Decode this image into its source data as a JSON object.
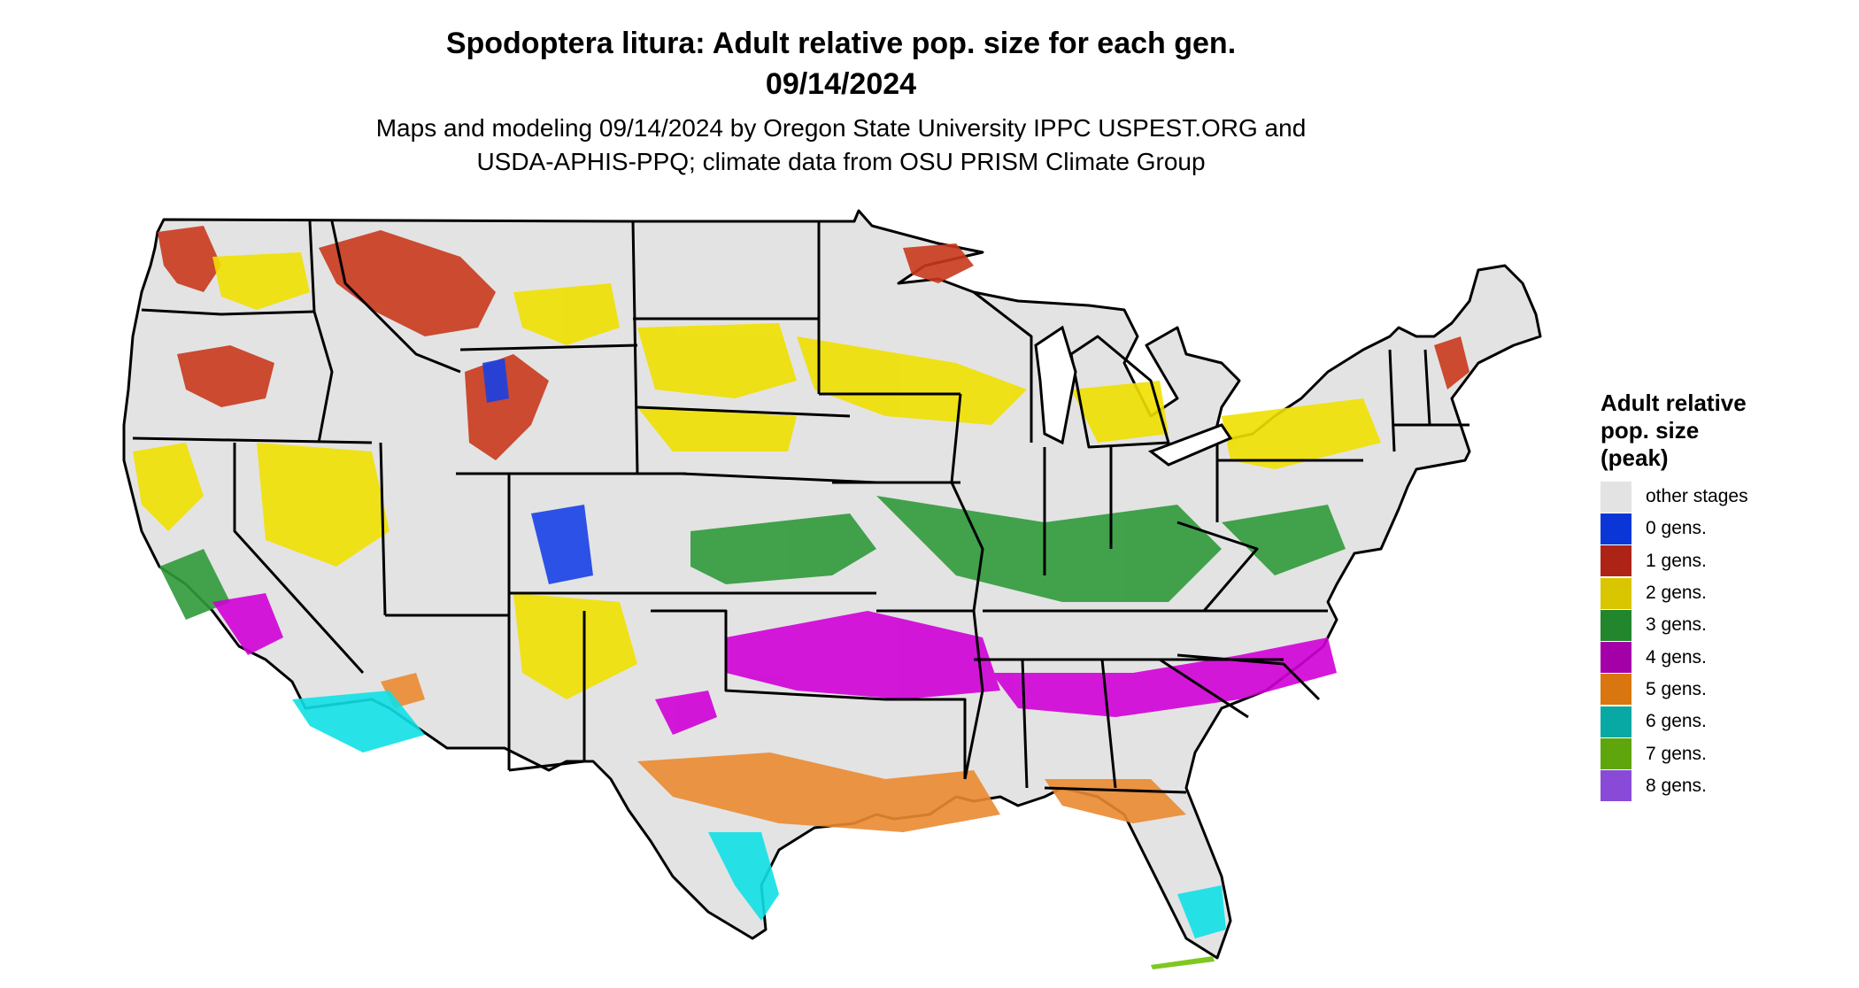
{
  "header": {
    "title_line1": "Spodoptera litura: Adult relative pop. size for each gen.",
    "title_line2": "09/14/2024",
    "subtitle_line1": "Maps and modeling 09/14/2024 by Oregon State University IPPC USPEST.ORG and",
    "subtitle_line2": "USDA-APHIS-PPQ; climate data from OSU PRISM Climate Group"
  },
  "legend": {
    "title_line1": "Adult relative",
    "title_line2": "pop. size",
    "title_line3": "(peak)",
    "items": [
      {
        "label": "other stages",
        "color": "#e3e3e3"
      },
      {
        "label": "0 gens.",
        "color": "#0a36d8"
      },
      {
        "label": "1 gens.",
        "color": "#ad2417"
      },
      {
        "label": "2 gens.",
        "color": "#d9c500"
      },
      {
        "label": "3 gens.",
        "color": "#21862c"
      },
      {
        "label": "4 gens.",
        "color": "#a300a8"
      },
      {
        "label": "5 gens.",
        "color": "#d9760f"
      },
      {
        "label": "6 gens.",
        "color": "#08a8a5"
      },
      {
        "label": "7 gens.",
        "color": "#5ea60c"
      },
      {
        "label": "8 gens.",
        "color": "#8a4ad8"
      }
    ]
  },
  "map": {
    "base_color": "#e3e3e3",
    "border_color": "#000000",
    "highlight_colors": {
      "gen0": "#1740e6",
      "gen1": "#c8381c",
      "gen2": "#f0e000",
      "gen3": "#2f9a3a",
      "gen4": "#d000d6",
      "gen5": "#ea8a30",
      "gen6": "#10e0e6",
      "gen7": "#7ec820"
    }
  }
}
